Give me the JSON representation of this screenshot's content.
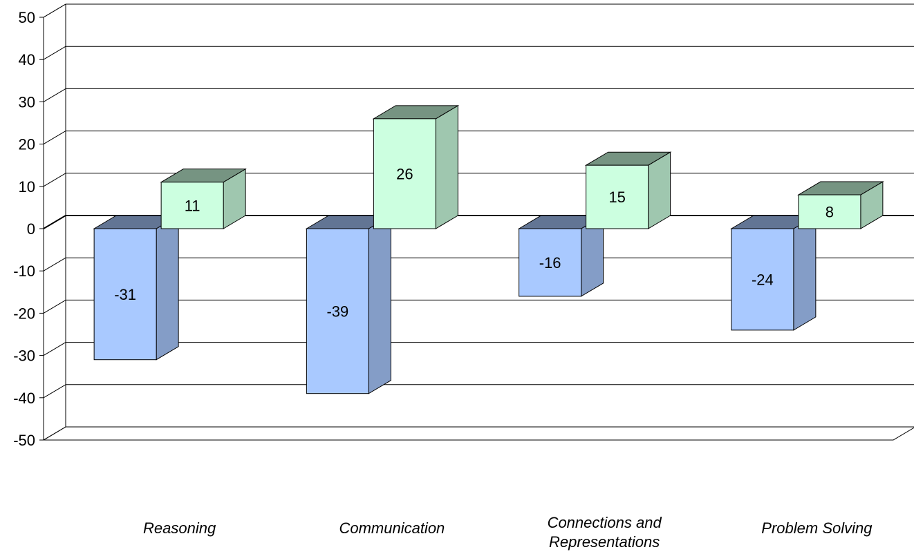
{
  "chart_data": {
    "type": "bar",
    "categories": [
      "Reasoning",
      "Communication",
      "Connections and Representations",
      "Problem Solving"
    ],
    "category_lines": [
      [
        "Reasoning"
      ],
      [
        "Communication"
      ],
      [
        "Connections and",
        "Representations"
      ],
      [
        "Problem Solving"
      ]
    ],
    "series": [
      {
        "values": [
          -31,
          -39,
          -16,
          -24
        ],
        "color": "#a9c9ff"
      },
      {
        "values": [
          11,
          26,
          15,
          8
        ],
        "color": "#ccffe0"
      }
    ],
    "ylim": [
      -50,
      50
    ],
    "yticks": [
      50,
      40,
      30,
      20,
      10,
      0,
      -10,
      -20,
      -30,
      -40,
      -50
    ],
    "grid": true,
    "three_d": true,
    "legend": "none"
  }
}
